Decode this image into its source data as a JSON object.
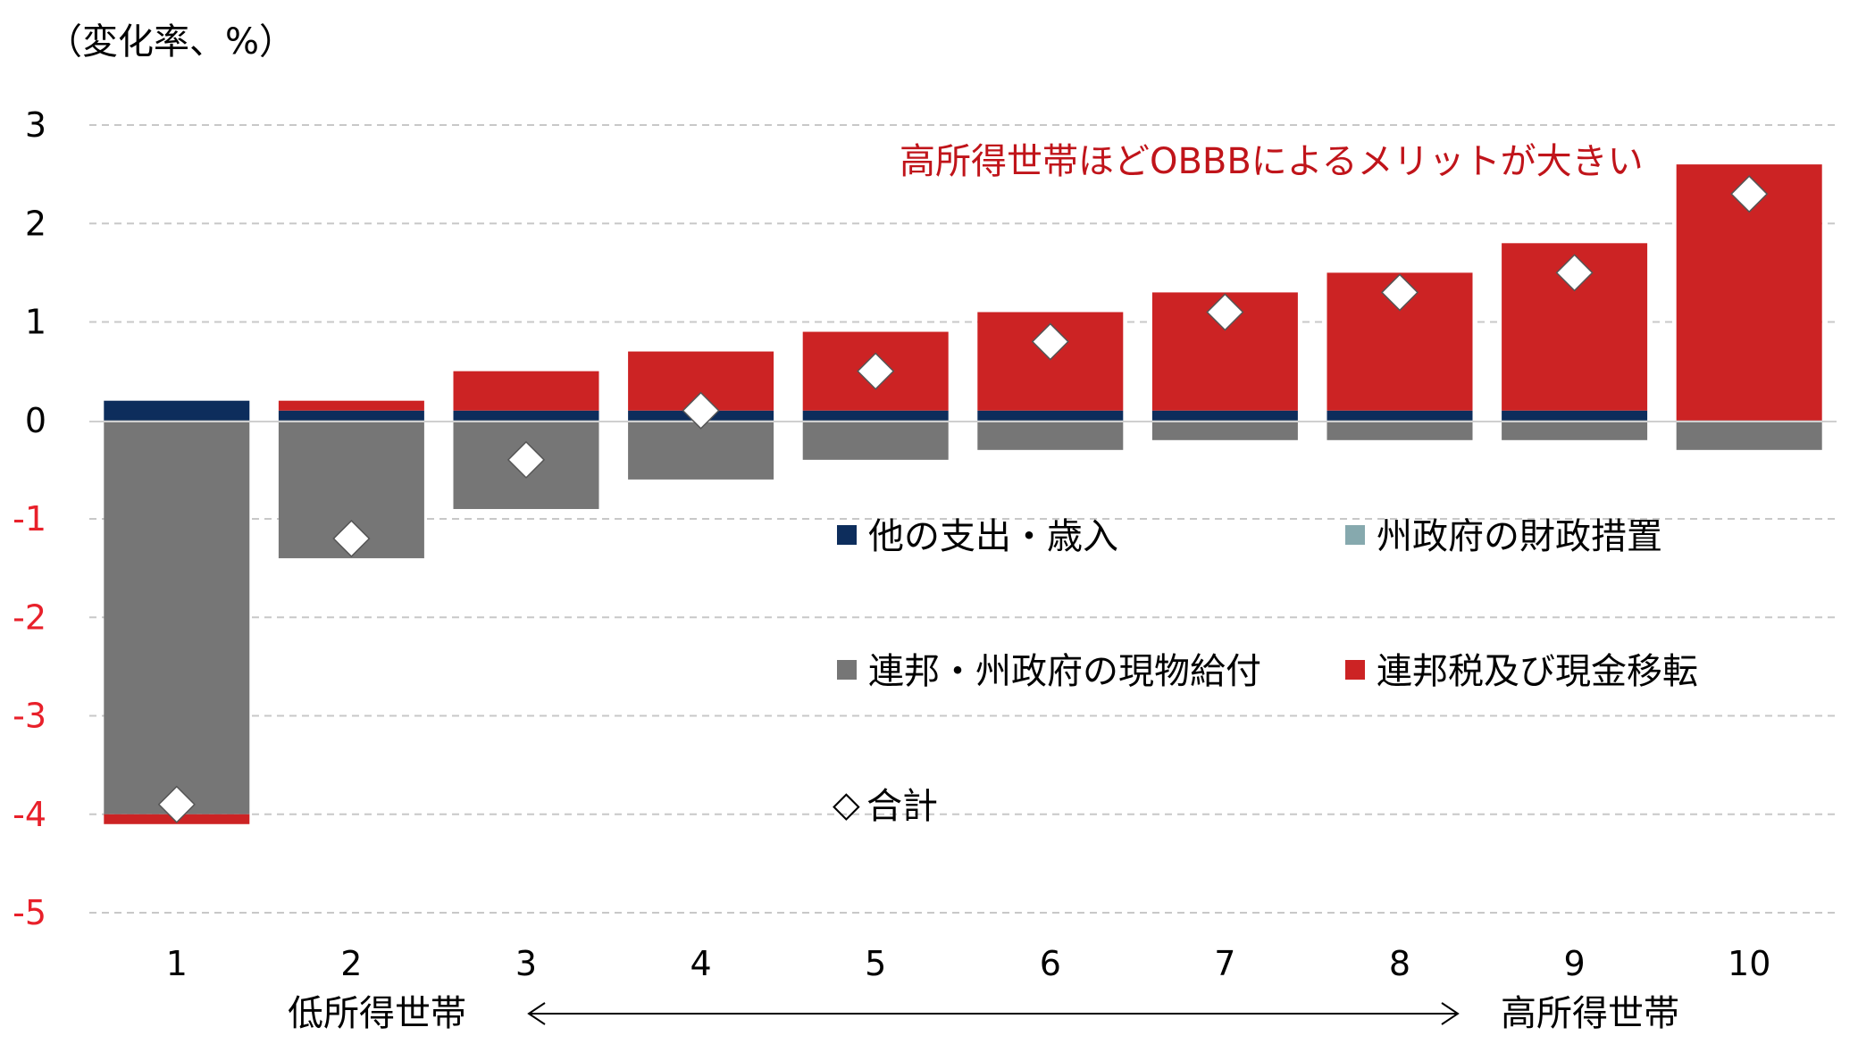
{
  "chart_data": {
    "type": "bar",
    "unit_label": "（変化率、%）",
    "annotation": "高所得世帯ほどOBBBによるメリットが大きい",
    "categories": [
      "1",
      "2",
      "3",
      "4",
      "5",
      "6",
      "7",
      "8",
      "9",
      "10"
    ],
    "ylim": [
      -5,
      3
    ],
    "yticks": [
      "3",
      "2",
      "1",
      "0",
      "-1",
      "-2",
      "-3",
      "-4",
      "-5"
    ],
    "ytick_values": [
      3,
      2,
      1,
      0,
      -1,
      -2,
      -3,
      -4,
      -5
    ],
    "grid": true,
    "series": [
      {
        "name": "他の支出・歳入",
        "color": "#0d2d5c",
        "values": [
          0.2,
          0.1,
          0.1,
          0.1,
          0.1,
          0.1,
          0.1,
          0.1,
          0.1,
          0.0
        ]
      },
      {
        "name": "州政府の財政措置",
        "color": "#86a9ae",
        "values": [
          0,
          0,
          0,
          0,
          0,
          0,
          0,
          0,
          0,
          0
        ]
      },
      {
        "name": "連邦・州政府の現物給付",
        "color": "#767676",
        "values": [
          -4.0,
          -1.4,
          -0.9,
          -0.6,
          -0.4,
          -0.3,
          -0.2,
          -0.2,
          -0.2,
          -0.3
        ]
      },
      {
        "name": "連邦税及び現金移転",
        "color": "#cc2324",
        "values": [
          -0.1,
          0.1,
          0.4,
          0.6,
          0.8,
          1.0,
          1.2,
          1.4,
          1.7,
          2.6
        ]
      }
    ],
    "total": {
      "name": "合計",
      "marker": "◇",
      "values": [
        -3.9,
        -1.2,
        -0.4,
        0.1,
        0.5,
        0.8,
        1.1,
        1.3,
        1.5,
        2.3
      ]
    },
    "x_footer": {
      "left": "低所得世帯",
      "right": "高所得世帯"
    }
  }
}
